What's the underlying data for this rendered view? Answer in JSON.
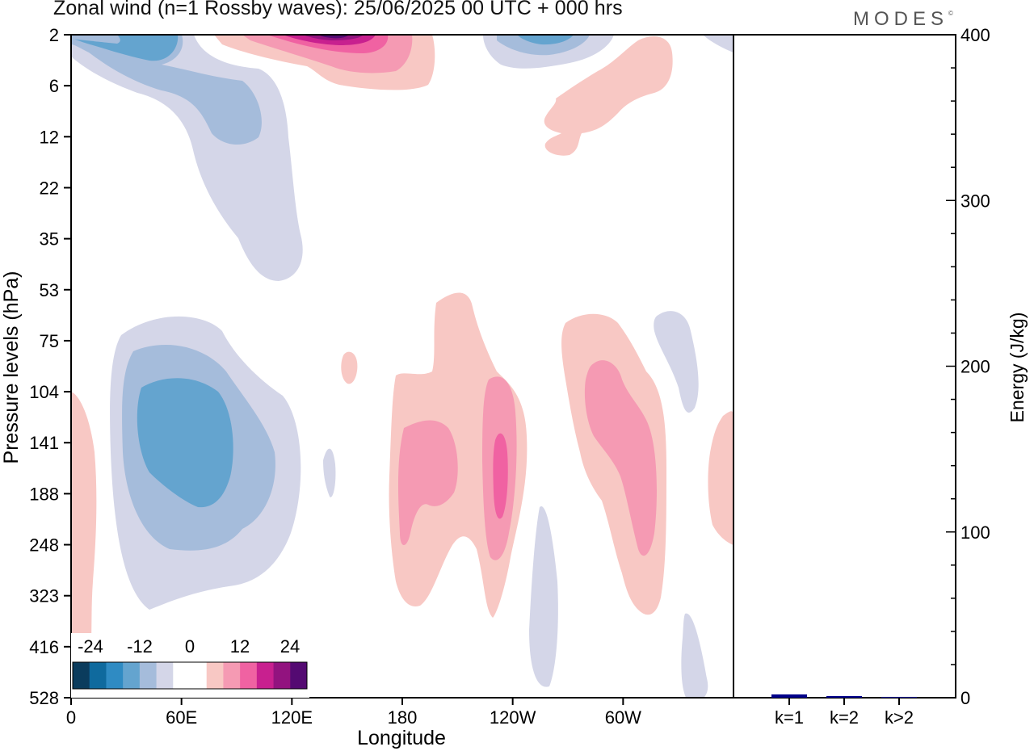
{
  "header": {
    "title": "Zonal wind (n=1 Rossby waves):  25/06/2025  00 UTC  + 000 hrs",
    "brand": "MODES",
    "brand_mark": "©"
  },
  "colors": {
    "neg": [
      "#0b3c5d",
      "#0f6a9e",
      "#2f8bc3",
      "#64a4cf",
      "#a5bcdb",
      "#d4d6e8"
    ],
    "neutral": "#ffffff",
    "pos": [
      "#f8c8c4",
      "#f59ab3",
      "#f062a2",
      "#c8208f",
      "#92137f",
      "#540a72"
    ],
    "bar": "#00008b"
  },
  "chart_data": [
    {
      "type": "heatmap",
      "title": "Zonal wind (n=1 Rossby waves)",
      "xlabel": "Longitude",
      "ylabel": "Pressure levels (hPa)",
      "x_ticks": [
        "0",
        "60E",
        "120E",
        "180",
        "120W",
        "60W"
      ],
      "y_ticks": [
        "2",
        "6",
        "12",
        "22",
        "35",
        "53",
        "75",
        "104",
        "141",
        "188",
        "248",
        "323",
        "416",
        "528"
      ],
      "colorbar": {
        "labels": [
          "-24",
          "-12",
          "0",
          "12",
          "24"
        ],
        "levels": [
          -24,
          -12,
          0,
          12,
          24
        ]
      },
      "features": [
        {
          "sign": "negative",
          "location": "60E, 100-250 hPa",
          "approx_min": -12
        },
        {
          "sign": "negative",
          "location": "10-60E, 2-12 hPa",
          "approx_min": -12
        },
        {
          "sign": "positive",
          "location": "100-130E, 2 hPa",
          "approx_max": 24
        },
        {
          "sign": "positive",
          "location": "115W, 140-200 hPa",
          "approx_max": 16
        },
        {
          "sign": "positive",
          "location": "60W, 100-250 hPa",
          "approx_max": 12
        }
      ]
    },
    {
      "type": "bar",
      "ylabel": "Energy (J/kg)",
      "categories": [
        "k=1",
        "k=2",
        "k>2"
      ],
      "values": [
        2,
        1,
        0.5
      ],
      "ylim": [
        0,
        400
      ],
      "y_ticks": [
        "0",
        "100",
        "200",
        "300",
        "400"
      ]
    }
  ]
}
